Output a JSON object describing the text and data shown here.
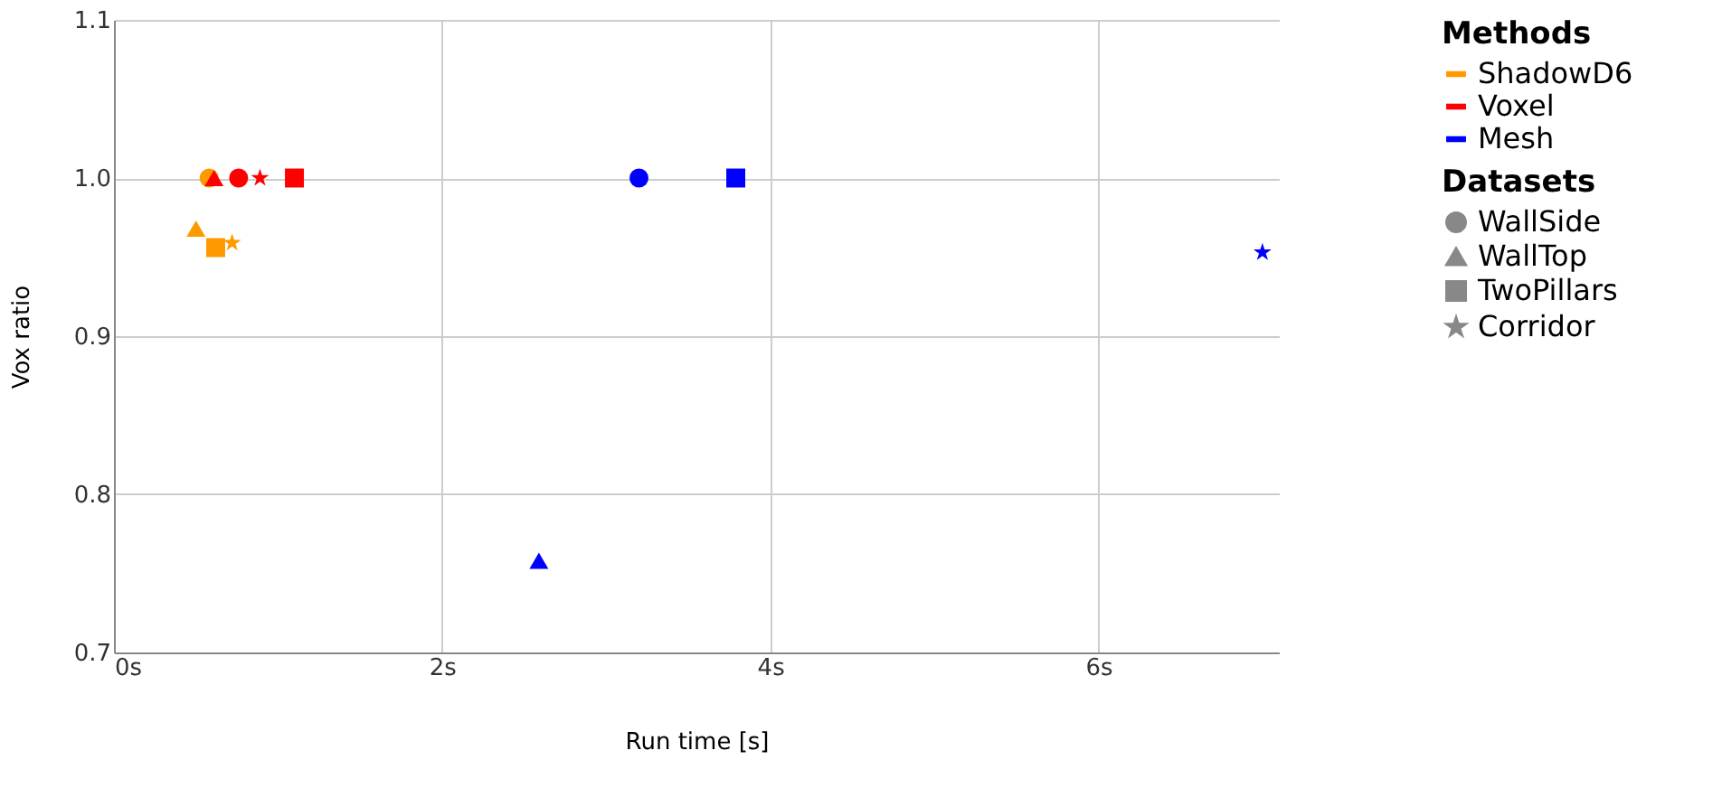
{
  "chart_data": {
    "type": "scatter",
    "xlabel": "Run time [s]",
    "ylabel": "Vox ratio",
    "legend_title": [
      "Methods",
      "Datasets"
    ],
    "series": [
      {
        "name": "ShadowD6",
        "color": "#ff9900",
        "x": [
          0.58,
          0.5,
          0.62,
          0.72
        ],
        "values": [
          1.0,
          0.968,
          0.956,
          0.959
        ],
        "marker": [
          "circle",
          "triangle",
          "square",
          "star"
        ]
      },
      {
        "name": "Voxel",
        "color": "#ff0000",
        "x": [
          0.76,
          0.61,
          1.1,
          0.89
        ],
        "values": [
          1.0,
          1.0,
          1.0,
          1.0
        ],
        "marker": [
          "circle",
          "triangle",
          "square",
          "star"
        ]
      },
      {
        "name": "Mesh",
        "color": "#0000ff",
        "x": [
          3.2,
          2.59,
          3.79,
          7.0
        ],
        "values": [
          1.0,
          0.758,
          1.0,
          0.953
        ],
        "marker": [
          "circle",
          "triangle",
          "square",
          "star"
        ]
      },
      {
        "name": "WallSide",
        "color": "#888888",
        "marker": "circle"
      },
      {
        "name": "WallTop",
        "color": "#888888",
        "marker": "triangle"
      },
      {
        "name": "TwoPillars",
        "color": "#888888",
        "marker": "square"
      },
      {
        "name": "Corridor",
        "color": "#888888",
        "marker": "star"
      }
    ],
    "xlim": [
      0,
      7.1
    ],
    "ylim": [
      0.7,
      1.1
    ],
    "xticks": [
      {
        "value": 0,
        "label": "0s"
      },
      {
        "value": 2,
        "label": "2s"
      },
      {
        "value": 4,
        "label": "4s"
      },
      {
        "value": 6,
        "label": "6s"
      }
    ],
    "yticks": [
      {
        "value": 0.7,
        "label": "0.7"
      },
      {
        "value": 0.8,
        "label": "0.8"
      },
      {
        "value": 0.9,
        "label": "0.9"
      },
      {
        "value": 1.0,
        "label": "1.0"
      },
      {
        "value": 1.1,
        "label": "1.1"
      }
    ],
    "grid": true,
    "legend": "right"
  }
}
